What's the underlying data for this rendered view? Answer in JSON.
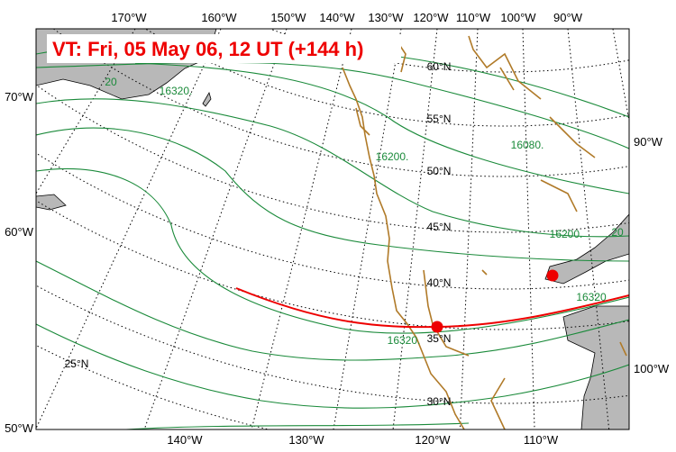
{
  "title": "VT:  Fri, 05 May 06, 12 UT (+144 h)",
  "lon_labels_top": [
    "170°W",
    "160°W",
    "150°W",
    "140°W",
    "130°W",
    "120°W",
    "110°W",
    "100°W",
    "90°W"
  ],
  "lon_labels_left": [
    "70°W",
    "60°W",
    "50°W"
  ],
  "lon_labels_right": [
    "90°W",
    "100°W"
  ],
  "lon_labels_bottom": [
    "140°W",
    "130°W",
    "120°W",
    "110°W"
  ],
  "lat_labels": [
    "60°N",
    "55°N",
    "50°N",
    "45°N",
    "40°N",
    "35°N",
    "30°N",
    "25°N"
  ],
  "contour_labels": [
    "20",
    "16320.",
    "16200.",
    "16080.",
    "16200.",
    "16320",
    "16320.",
    "20"
  ]
}
